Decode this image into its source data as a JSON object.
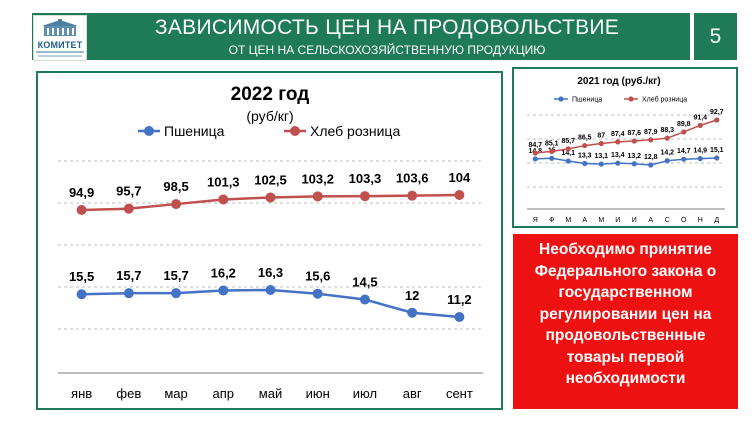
{
  "header": {
    "title": "ЗАВИСИМОСТЬ ЦЕН НА ПРОДОВОЛЬСТВИЕ",
    "subtitle": "ОТ ЦЕН НА СЕЛЬСКОХОЗЯЙСТВЕННУЮ ПРОДУКЦИЮ",
    "page_number": "5",
    "logo_text": "КОМИТЕТ"
  },
  "colors": {
    "header_bg": "#1e7a57",
    "wheat": "#4472c4",
    "bread": "#c0504d",
    "alert_bg": "#ee1111"
  },
  "chart_data": [
    {
      "type": "line",
      "title": "2022 год",
      "subtitle": "(руб/кг)",
      "categories": [
        "янв",
        "фев",
        "мар",
        "апр",
        "май",
        "июн",
        "июл",
        "авг",
        "сент"
      ],
      "series": [
        {
          "name": "Пшеница",
          "values": [
            15.5,
            15.7,
            15.7,
            16.2,
            16.3,
            15.6,
            14.5,
            12,
            11.2
          ],
          "labels": [
            "15,5",
            "15,7",
            "15,7",
            "16,2",
            "16,3",
            "15,6",
            "14,5",
            "12",
            "11,2"
          ]
        },
        {
          "name": "Хлеб розница",
          "values": [
            94.9,
            95.7,
            98.5,
            101.3,
            102.5,
            103.2,
            103.3,
            103.6,
            104
          ],
          "labels": [
            "94,9",
            "95,7",
            "98,5",
            "101,3",
            "102,5",
            "103,2",
            "103,3",
            "103,6",
            "104"
          ]
        }
      ],
      "legend": "top",
      "grid": true
    },
    {
      "type": "line",
      "title": "2021 год (руб./кг)",
      "categories": [
        "Я",
        "Ф",
        "М",
        "А",
        "М",
        "И",
        "И",
        "А",
        "С",
        "О",
        "Н",
        "Д"
      ],
      "series": [
        {
          "name": "Пшеница",
          "values": [
            14.8,
            15,
            14.1,
            13.3,
            13.1,
            13.4,
            13.2,
            12.8,
            14.2,
            14.7,
            14.9,
            15.1
          ],
          "labels": [
            "14,8",
            "15",
            "14,1",
            "13,3",
            "13,1",
            "13,4",
            "13,2",
            "12,8",
            "14,2",
            "14,7",
            "14,9",
            "15,1"
          ]
        },
        {
          "name": "Хлеб розница",
          "values": [
            84.7,
            85.1,
            85.7,
            86.5,
            87,
            87.4,
            87.6,
            87.9,
            88.3,
            89.8,
            91.4,
            92.7
          ],
          "labels": [
            "84,7",
            "85,1",
            "85,7",
            "86,5",
            "87",
            "87,4",
            "87,6",
            "87,9",
            "88,3",
            "89,8",
            "91,4",
            "92,7"
          ]
        }
      ],
      "legend": "top",
      "grid": true
    }
  ],
  "alert": {
    "text": "Необходимо принятие Федерального закона о государственном регулировании цен на продовольственные товары первой необходимости"
  }
}
